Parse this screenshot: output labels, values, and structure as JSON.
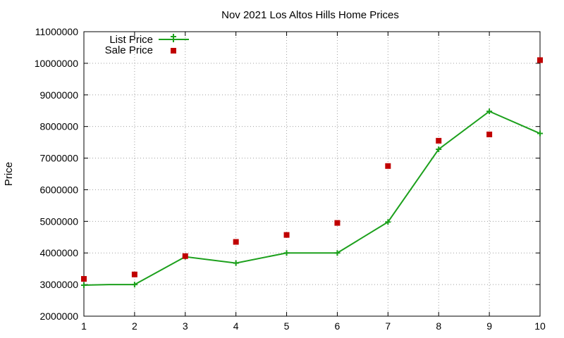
{
  "chart_data": {
    "type": "line",
    "title": "Nov 2021 Los Altos Hills Home Prices",
    "xlabel": "",
    "ylabel": "Price",
    "x": [
      1,
      2,
      3,
      4,
      5,
      6,
      7,
      8,
      9,
      10
    ],
    "xlim": [
      1,
      10
    ],
    "ylim": [
      2000000,
      11000000
    ],
    "yticks": [
      2000000,
      3000000,
      4000000,
      5000000,
      6000000,
      7000000,
      8000000,
      9000000,
      10000000,
      11000000
    ],
    "ytick_labels": [
      "2000000",
      "3000000",
      "4000000",
      "5000000",
      "6000000",
      "7000000",
      "8000000",
      "9000000",
      "10000000",
      "11000000"
    ],
    "xticks": [
      1,
      2,
      3,
      4,
      5,
      6,
      7,
      8,
      9,
      10
    ],
    "xtick_labels": [
      "1",
      "2",
      "3",
      "4",
      "5",
      "6",
      "7",
      "8",
      "9",
      "10"
    ],
    "grid": true,
    "legend_position": "top-left",
    "series": [
      {
        "name": "List Price",
        "style": "line-with-plus-markers",
        "color": "#1ca01c",
        "x": [
          1,
          1.5,
          2,
          3,
          4,
          5,
          6,
          7,
          8,
          9,
          10
        ],
        "values": [
          2980000,
          3000000,
          3000000,
          3880000,
          3680000,
          4000000,
          4000000,
          4980000,
          7280000,
          8480000,
          7780000
        ]
      },
      {
        "name": "Sale Price",
        "style": "square-markers",
        "color": "#c00000",
        "x": [
          1,
          2,
          3,
          4,
          5,
          6,
          7,
          8,
          9,
          10
        ],
        "values": [
          3180000,
          3320000,
          3900000,
          4350000,
          4570000,
          4950000,
          6750000,
          7550000,
          7750000,
          10100000
        ]
      }
    ]
  }
}
